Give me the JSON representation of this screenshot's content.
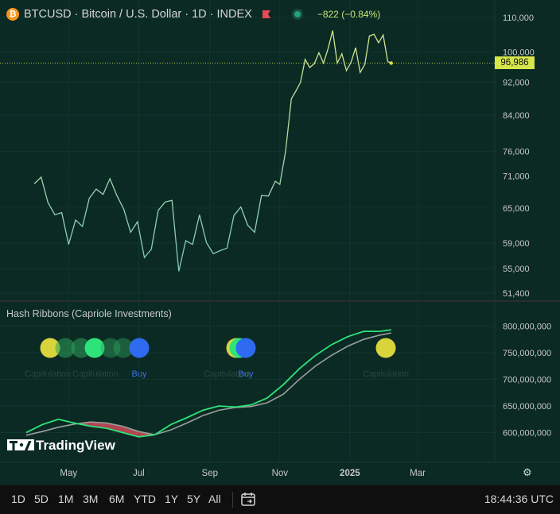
{
  "header": {
    "symbol_line": "BTCUSD · Bitcoin / U.S. Dollar · 1D · INDEX",
    "change": "−822 (−0.84%)",
    "icon": "bitcoin-icon"
  },
  "indicator": {
    "label": "Hash Ribbons (Capriole Investments)",
    "markers": [
      "Capitulation",
      "Capitulation",
      "Buy",
      "Capitulation",
      "Buy",
      "Capitulation"
    ]
  },
  "price_tag": "96,986",
  "toolbar": {
    "timeframes": [
      "1D",
      "5D",
      "1M",
      "3M",
      "6M",
      "YTD",
      "1Y",
      "5Y",
      "All"
    ],
    "time": "18:44:36 UTC"
  },
  "watermark": "TradingView",
  "colors": {
    "background": "#0b2a24",
    "price_line_low": "#7ec8c0",
    "price_line_high": "#d4e68a",
    "ribbon_fast": "#2ee37a",
    "ribbon_slow": "#9aa09a",
    "capitulation_fill": "#d04a5a",
    "buy_circle": "#2f6bf0",
    "capitulation_circle": "#d8d43c",
    "price_tag_bg": "#d6e64a"
  },
  "chart_data": [
    {
      "type": "line",
      "series": [
        {
          "dates": [
            "2024-04-01",
            "2024-04-07",
            "2024-04-13",
            "2024-04-19",
            "2024-04-25",
            "2024-05-01",
            "2024-05-07",
            "2024-05-13",
            "2024-05-19",
            "2024-05-25",
            "2024-05-31",
            "2024-06-06",
            "2024-06-12",
            "2024-06-18",
            "2024-06-24",
            "2024-06-30",
            "2024-07-06",
            "2024-07-12",
            "2024-07-18",
            "2024-07-24",
            "2024-07-30",
            "2024-08-05",
            "2024-08-11",
            "2024-08-17",
            "2024-08-23",
            "2024-08-29",
            "2024-09-04",
            "2024-09-10",
            "2024-09-16",
            "2024-09-22",
            "2024-09-28",
            "2024-10-04",
            "2024-10-10",
            "2024-10-16",
            "2024-10-22",
            "2024-10-28",
            "2024-11-01",
            "2024-11-06",
            "2024-11-11",
            "2024-11-15",
            "2024-11-19",
            "2024-11-23",
            "2024-11-27",
            "2024-12-01",
            "2024-12-05",
            "2024-12-09",
            "2024-12-13",
            "2024-12-17",
            "2024-12-21",
            "2024-12-25",
            "2024-12-29",
            "2025-01-02",
            "2025-01-06",
            "2025-01-10",
            "2025-01-14",
            "2025-01-18",
            "2025-01-22",
            "2025-01-26",
            "2025-01-30",
            "2025-02-03",
            "2025-02-06"
          ],
          "values": [
            69500,
            70800,
            66000,
            63800,
            64200,
            58800,
            62900,
            61800,
            66800,
            68500,
            67500,
            70500,
            67300,
            64800,
            60800,
            62600,
            56700,
            58000,
            64600,
            66100,
            66400,
            54600,
            59400,
            58800,
            63800,
            59100,
            57300,
            57800,
            58200,
            63700,
            65200,
            62000,
            60800,
            67300,
            67200,
            70000,
            69400,
            76000,
            87900,
            89800,
            92000,
            98000,
            95800,
            96800,
            99800,
            97000,
            100900,
            106100,
            97000,
            99500,
            95000,
            97200,
            101200,
            94500,
            96600,
            104500,
            105000,
            102600,
            104800,
            97400,
            96986
          ],
          "color": "#7ec8c0"
        }
      ],
      "ylim": [
        51400,
        110000
      ],
      "y_ticks": [
        "110,000",
        "100,000",
        "92,000",
        "84,000",
        "76,000",
        "71,000",
        "65,000",
        "59,000",
        "55,000",
        "51,400"
      ],
      "x_ticks": [
        "May",
        "Jul",
        "Sep",
        "Nov",
        "2025",
        "Mar"
      ],
      "last_value": 96986,
      "scale": "log"
    },
    {
      "type": "line",
      "series": [
        {
          "dates": [
            "2024-03-25",
            "2024-04-08",
            "2024-04-22",
            "2024-05-06",
            "2024-05-20",
            "2024-06-03",
            "2024-06-17",
            "2024-07-01",
            "2024-07-15",
            "2024-07-29",
            "2024-08-12",
            "2024-08-26",
            "2024-09-09",
            "2024-09-23",
            "2024-10-07",
            "2024-10-21",
            "2024-11-04",
            "2024-11-18",
            "2024-12-02",
            "2024-12-16",
            "2024-12-30",
            "2025-01-13",
            "2025-01-27",
            "2025-02-06"
          ],
          "values": [
            600000000,
            615000000,
            625000000,
            618000000,
            612000000,
            608000000,
            600000000,
            592000000,
            596000000,
            615000000,
            628000000,
            642000000,
            650000000,
            648000000,
            652000000,
            665000000,
            690000000,
            720000000,
            745000000,
            765000000,
            780000000,
            790000000,
            790000000,
            793000000
          ],
          "color": "#2ee37a"
        },
        {
          "dates": [
            "2024-03-25",
            "2024-04-08",
            "2024-04-22",
            "2024-05-06",
            "2024-05-20",
            "2024-06-03",
            "2024-06-17",
            "2024-07-01",
            "2024-07-15",
            "2024-07-29",
            "2024-08-12",
            "2024-08-26",
            "2024-09-09",
            "2024-09-23",
            "2024-10-07",
            "2024-10-21",
            "2024-11-04",
            "2024-11-18",
            "2024-12-02",
            "2024-12-16",
            "2024-12-30",
            "2025-01-13",
            "2025-01-27",
            "2025-02-06"
          ],
          "values": [
            595000000,
            602000000,
            610000000,
            616000000,
            620000000,
            618000000,
            612000000,
            602000000,
            596000000,
            605000000,
            618000000,
            632000000,
            642000000,
            647000000,
            649000000,
            656000000,
            672000000,
            700000000,
            725000000,
            745000000,
            762000000,
            775000000,
            783000000,
            787000000
          ],
          "color": "#9aa09a"
        }
      ],
      "ylim": [
        565000000,
        820000000
      ],
      "y_ticks": [
        "800,000,000",
        "750,000,000",
        "700,000,000",
        "650,000,000",
        "600,000,000"
      ]
    }
  ]
}
